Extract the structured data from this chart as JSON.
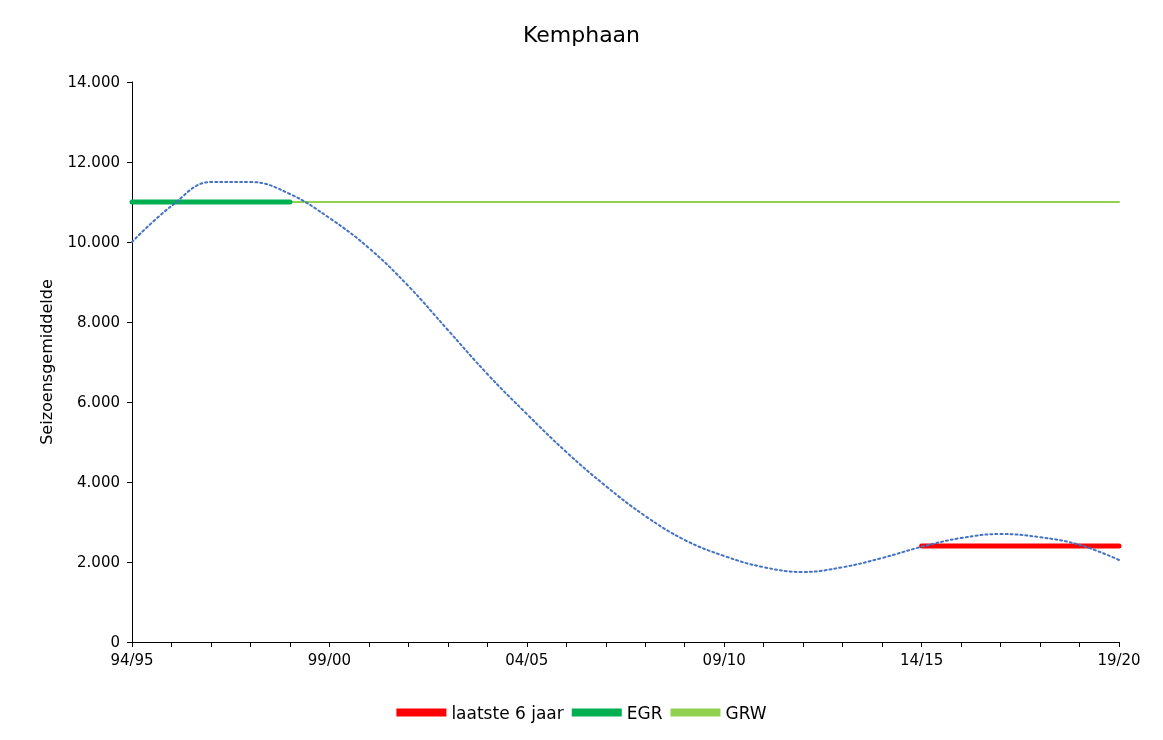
{
  "chart_data": {
    "type": "line",
    "title": "Kemphaan",
    "ylabel": "Seizoensgemiddelde",
    "categories": [
      "94/95",
      null,
      null,
      null,
      null,
      "99/00",
      null,
      null,
      null,
      null,
      "04/05",
      null,
      null,
      null,
      null,
      "09/10",
      null,
      null,
      null,
      null,
      "14/15",
      null,
      null,
      null,
      null,
      "19/20"
    ],
    "series": [
      {
        "name": "laatste 6 jaar",
        "color": "#ff0000",
        "values": [
          null,
          null,
          null,
          null,
          null,
          null,
          null,
          null,
          null,
          null,
          null,
          null,
          null,
          null,
          null,
          null,
          null,
          null,
          null,
          null,
          2400,
          2400,
          2400,
          2400,
          2400,
          2400
        ]
      },
      {
        "name": "EGR",
        "color": "#00b050",
        "values": [
          11000,
          11000,
          11000,
          11000,
          11000,
          null,
          null,
          null,
          null,
          null,
          null,
          null,
          null,
          null,
          null,
          null,
          null,
          null,
          null,
          null,
          null,
          null,
          null,
          null,
          null,
          null
        ]
      },
      {
        "name": "GRW",
        "color": "#92d050",
        "values": [
          null,
          null,
          null,
          null,
          11000,
          11000,
          11000,
          11000,
          11000,
          11000,
          11000,
          11000,
          11000,
          11000,
          11000,
          11000,
          11000,
          11000,
          11000,
          11000,
          11000,
          11000,
          11000,
          11000,
          11000,
          11000
        ]
      },
      {
        "color": "#4472c4",
        "line_style": "dotted",
        "values": [
          10000,
          10900,
          11500,
          11500,
          11200,
          10600,
          9850,
          8900,
          7800,
          6700,
          5700,
          4750,
          3900,
          3150,
          2550,
          2150,
          1870,
          1750,
          1870,
          2100,
          2380,
          2600,
          2700,
          2620,
          2430,
          2050
        ]
      }
    ],
    "ylim": [
      0,
      14000
    ],
    "yticks": [
      {
        "value": 0,
        "label": "0"
      },
      {
        "value": 2000,
        "label": "2.000"
      },
      {
        "value": 4000,
        "label": "4.000"
      },
      {
        "value": 6000,
        "label": "6.000"
      },
      {
        "value": 8000,
        "label": "8.000"
      },
      {
        "value": 10000,
        "label": "10.000"
      },
      {
        "value": 12000,
        "label": "12.000"
      },
      {
        "value": 14000,
        "label": "14.000"
      }
    ],
    "grid": false,
    "legend": "bottom",
    "marker": "none",
    "line_style": "solid"
  }
}
